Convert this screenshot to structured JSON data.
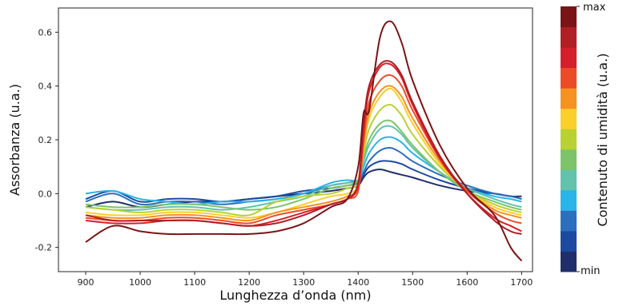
{
  "chart_data": {
    "type": "line",
    "title": "",
    "xlabel": "Lunghezza d’onda (nm)",
    "ylabel": "Assorbanza (u.a.)",
    "xlim": [
      850,
      1720
    ],
    "ylim": [
      -0.29,
      0.69
    ],
    "xticks": [
      900,
      1000,
      1100,
      1200,
      1300,
      1400,
      1500,
      1600,
      1700
    ],
    "yticks": [
      -0.2,
      0.0,
      0.2,
      0.4,
      0.6
    ],
    "ytick_labels": [
      "-0.2",
      "0.0",
      "0.2",
      "0.4",
      "0.6"
    ],
    "grid": false,
    "x": [
      900,
      950,
      1000,
      1050,
      1100,
      1150,
      1200,
      1250,
      1300,
      1350,
      1380,
      1400,
      1410,
      1420,
      1440,
      1460,
      1480,
      1500,
      1550,
      1600,
      1650,
      1680,
      1700
    ],
    "series": [
      {
        "color": "#202e6b",
        "values": [
          -0.05,
          -0.03,
          -0.05,
          -0.04,
          -0.03,
          -0.03,
          -0.02,
          -0.01,
          0.0,
          0.01,
          0.02,
          0.03,
          0.06,
          0.08,
          0.09,
          0.08,
          0.07,
          0.06,
          0.03,
          0.01,
          0.0,
          -0.01,
          -0.01
        ]
      },
      {
        "color": "#1b4aa0",
        "values": [
          -0.02,
          0.01,
          -0.03,
          -0.02,
          -0.02,
          -0.03,
          -0.02,
          -0.01,
          0.01,
          0.02,
          0.03,
          0.04,
          0.07,
          0.1,
          0.12,
          0.12,
          0.11,
          0.09,
          0.05,
          0.02,
          0.0,
          -0.01,
          -0.02
        ]
      },
      {
        "color": "#2c6fbe",
        "values": [
          -0.03,
          0.0,
          -0.04,
          -0.03,
          -0.03,
          -0.04,
          -0.03,
          -0.02,
          0.0,
          0.03,
          0.04,
          0.05,
          0.08,
          0.12,
          0.16,
          0.17,
          0.15,
          0.12,
          0.07,
          0.03,
          0.0,
          -0.01,
          -0.02
        ]
      },
      {
        "color": "#2ab4e8",
        "values": [
          0.0,
          0.01,
          -0.02,
          -0.03,
          -0.04,
          -0.03,
          -0.03,
          -0.02,
          0.0,
          0.04,
          0.05,
          0.05,
          0.1,
          0.15,
          0.2,
          0.21,
          0.19,
          0.15,
          0.08,
          0.02,
          -0.01,
          -0.02,
          -0.03
        ]
      },
      {
        "color": "#62c2ac",
        "values": [
          -0.05,
          -0.06,
          -0.06,
          -0.05,
          -0.05,
          -0.06,
          -0.05,
          -0.03,
          -0.01,
          0.03,
          0.04,
          0.05,
          0.12,
          0.18,
          0.24,
          0.25,
          0.22,
          0.17,
          0.08,
          0.02,
          -0.02,
          -0.04,
          -0.05
        ]
      },
      {
        "color": "#7cc46a",
        "values": [
          -0.04,
          -0.05,
          -0.05,
          -0.04,
          -0.04,
          -0.05,
          -0.06,
          -0.05,
          -0.02,
          0.02,
          0.03,
          0.05,
          0.13,
          0.2,
          0.26,
          0.27,
          0.23,
          0.18,
          0.08,
          0.01,
          -0.03,
          -0.05,
          -0.06
        ]
      },
      {
        "color": "#b9d131",
        "values": [
          -0.05,
          -0.06,
          -0.07,
          -0.06,
          -0.06,
          -0.07,
          -0.08,
          -0.03,
          -0.01,
          0.0,
          0.02,
          0.04,
          0.15,
          0.24,
          0.31,
          0.33,
          0.29,
          0.22,
          0.1,
          0.01,
          -0.04,
          -0.06,
          -0.07
        ]
      },
      {
        "color": "#fbcf2c",
        "values": [
          -0.07,
          -0.08,
          -0.08,
          -0.07,
          -0.07,
          -0.08,
          -0.09,
          -0.07,
          -0.04,
          -0.01,
          0.0,
          0.03,
          0.17,
          0.28,
          0.36,
          0.39,
          0.34,
          0.26,
          0.11,
          0.01,
          -0.05,
          -0.07,
          -0.08
        ]
      },
      {
        "color": "#f59222",
        "values": [
          -0.08,
          -0.09,
          -0.09,
          -0.08,
          -0.08,
          -0.09,
          -0.1,
          -0.07,
          -0.05,
          -0.03,
          -0.01,
          0.02,
          0.18,
          0.3,
          0.38,
          0.4,
          0.36,
          0.28,
          0.12,
          0.01,
          -0.06,
          -0.08,
          -0.09
        ]
      },
      {
        "color": "#ec4b28",
        "values": [
          -0.09,
          -0.1,
          -0.1,
          -0.09,
          -0.09,
          -0.1,
          -0.11,
          -0.08,
          -0.06,
          -0.04,
          -0.02,
          0.01,
          0.2,
          0.34,
          0.42,
          0.44,
          0.4,
          0.31,
          0.13,
          0.01,
          -0.07,
          -0.1,
          -0.11
        ]
      },
      {
        "color": "#d3202a",
        "values": [
          -0.1,
          -0.11,
          -0.11,
          -0.1,
          -0.1,
          -0.11,
          -0.12,
          -0.1,
          -0.07,
          -0.04,
          -0.02,
          0.03,
          0.24,
          0.38,
          0.47,
          0.48,
          0.43,
          0.33,
          0.13,
          0.0,
          -0.09,
          -0.12,
          -0.14
        ]
      },
      {
        "color": "#b01f24",
        "values": [
          -0.08,
          -0.1,
          -0.1,
          -0.1,
          -0.1,
          -0.11,
          -0.12,
          -0.11,
          -0.08,
          -0.04,
          -0.02,
          0.04,
          0.26,
          0.4,
          0.48,
          0.49,
          0.44,
          0.34,
          0.14,
          0.0,
          -0.1,
          -0.14,
          -0.15
        ]
      },
      {
        "color": "#7b1416",
        "values": [
          -0.18,
          -0.12,
          -0.14,
          -0.15,
          -0.15,
          -0.15,
          -0.15,
          -0.14,
          -0.11,
          -0.05,
          -0.02,
          0.1,
          0.3,
          0.31,
          0.58,
          0.64,
          0.56,
          0.42,
          0.18,
          0.02,
          -0.08,
          -0.2,
          -0.25
        ]
      }
    ],
    "colorbar": {
      "label": "Contenuto di umidità (u.a.)",
      "max_label": "max",
      "min_label": "min",
      "colors": [
        "#202e6b",
        "#1b4aa0",
        "#2c6fbe",
        "#2ab4e8",
        "#62c2ac",
        "#7cc46a",
        "#b9d131",
        "#fbcf2c",
        "#f59222",
        "#ec4b28",
        "#d3202a",
        "#b01f24",
        "#7b1416"
      ]
    }
  }
}
